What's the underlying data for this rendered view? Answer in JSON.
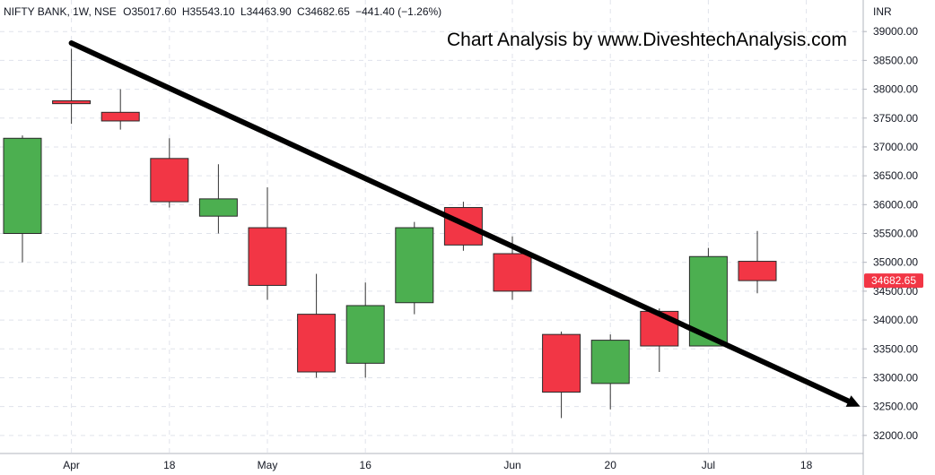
{
  "header": {
    "symbol": "NIFTY BANK, 1W, NSE",
    "open": "O35017.60",
    "high": "H35543.10",
    "low": "L34463.90",
    "close": "C34682.65",
    "change": "−441.40 (−1.26%)"
  },
  "watermark": "Chart Analysis by www.DiveshtechAnalysis.com",
  "currency": "INR",
  "colors": {
    "up": "#4caf50",
    "down": "#f23645",
    "grid": "#e0e3eb",
    "trendline": "#000000",
    "text": "#131722"
  },
  "chart_data": {
    "type": "candlestick",
    "title": "NIFTY BANK, 1W, NSE",
    "ylabel": "INR",
    "ylim": [
      31500,
      39500
    ],
    "x_tick_labels": [
      "Apr",
      "18",
      "May",
      "16",
      "Jun",
      "20",
      "Jul",
      "18"
    ],
    "x_tick_slots": [
      1,
      3,
      5,
      7,
      10,
      12,
      14,
      16
    ],
    "y_ticks": [
      32000,
      32500,
      33000,
      33500,
      34000,
      34500,
      35000,
      35500,
      36000,
      36500,
      37000,
      37500,
      38000,
      38500,
      39000
    ],
    "y_tick_labels": [
      "32000.00",
      "32500.00",
      "33000.00",
      "33500.00",
      "34000.00",
      "34500.00",
      "35000.00",
      "35500.00",
      "36000.00",
      "36500.00",
      "37000.00",
      "37500.00",
      "38000.00",
      "38500.00",
      "39000.00"
    ],
    "candles": [
      {
        "slot": 0,
        "open": 35500,
        "high": 37200,
        "low": 35000,
        "close": 37150
      },
      {
        "slot": 1,
        "open": 37800,
        "high": 38700,
        "low": 37400,
        "close": 37750
      },
      {
        "slot": 2,
        "open": 37600,
        "high": 38000,
        "low": 37300,
        "close": 37450
      },
      {
        "slot": 3,
        "open": 36800,
        "high": 37150,
        "low": 35950,
        "close": 36050
      },
      {
        "slot": 4,
        "open": 35800,
        "high": 36700,
        "low": 35500,
        "close": 36100
      },
      {
        "slot": 5,
        "open": 35600,
        "high": 36300,
        "low": 34350,
        "close": 34600
      },
      {
        "slot": 6,
        "open": 34100,
        "high": 34800,
        "low": 33000,
        "close": 33100
      },
      {
        "slot": 7,
        "open": 33250,
        "high": 34650,
        "low": 33000,
        "close": 34250
      },
      {
        "slot": 8,
        "open": 34300,
        "high": 35700,
        "low": 34100,
        "close": 35600
      },
      {
        "slot": 9,
        "open": 35950,
        "high": 36050,
        "low": 35200,
        "close": 35300
      },
      {
        "slot": 10,
        "open": 35150,
        "high": 35450,
        "low": 34350,
        "close": 34500
      },
      {
        "slot": 11,
        "open": 33750,
        "high": 33800,
        "low": 32300,
        "close": 32750
      },
      {
        "slot": 12,
        "open": 32900,
        "high": 33750,
        "low": 32450,
        "close": 33650
      },
      {
        "slot": 13,
        "open": 34150,
        "high": 34200,
        "low": 33100,
        "close": 33550
      },
      {
        "slot": 14,
        "open": 33550,
        "high": 35250,
        "low": 33550,
        "close": 35100
      },
      {
        "slot": 15,
        "open": 35017.6,
        "high": 35543.1,
        "low": 34463.9,
        "close": 34682.65
      }
    ],
    "trendline": {
      "start": {
        "slot": 1,
        "value": 38800
      },
      "end": {
        "slot": 17.1,
        "value": 32500
      },
      "arrow": true
    },
    "last_price_label": "34682.65"
  }
}
